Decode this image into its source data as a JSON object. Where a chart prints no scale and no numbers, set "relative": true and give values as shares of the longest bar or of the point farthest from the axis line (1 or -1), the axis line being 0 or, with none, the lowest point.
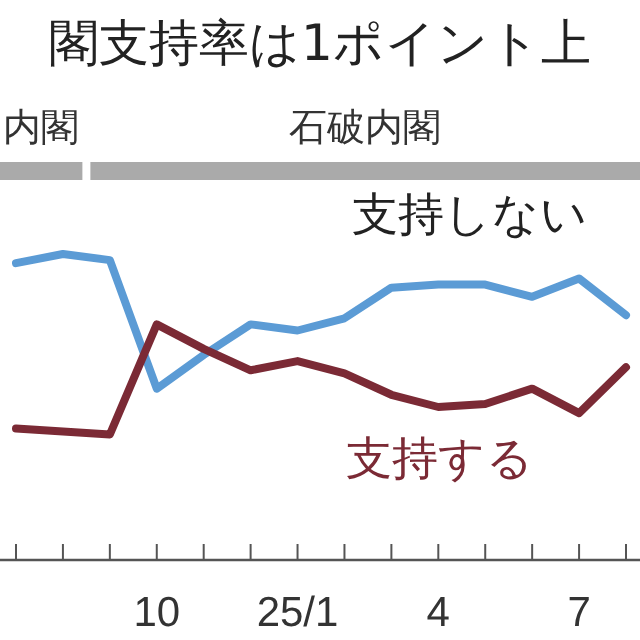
{
  "chart_data": {
    "type": "line",
    "title": "閣支持率は1ポイント上",
    "relative": true,
    "categories": [
      null,
      null,
      null,
      "10",
      null,
      null,
      "25/1",
      null,
      null,
      "4",
      null,
      null,
      "7",
      null
    ],
    "series": [
      {
        "name": "支持しない",
        "color": "#5b9bd5",
        "values": [
          0.97,
          1,
          0.98,
          0.56,
          0.67,
          0.77,
          0.75,
          0.79,
          0.89,
          0.9,
          0.9,
          0.86,
          0.92,
          0.8
        ]
      },
      {
        "name": "支持する",
        "color": "#7b2a35",
        "values": [
          0.43,
          0.42,
          0.41,
          0.77,
          0.69,
          0.62,
          0.65,
          0.61,
          0.54,
          0.5,
          0.51,
          0.56,
          0.48,
          0.63
        ]
      }
    ],
    "annotations": [
      "内閣",
      "石破内閣"
    ]
  }
}
